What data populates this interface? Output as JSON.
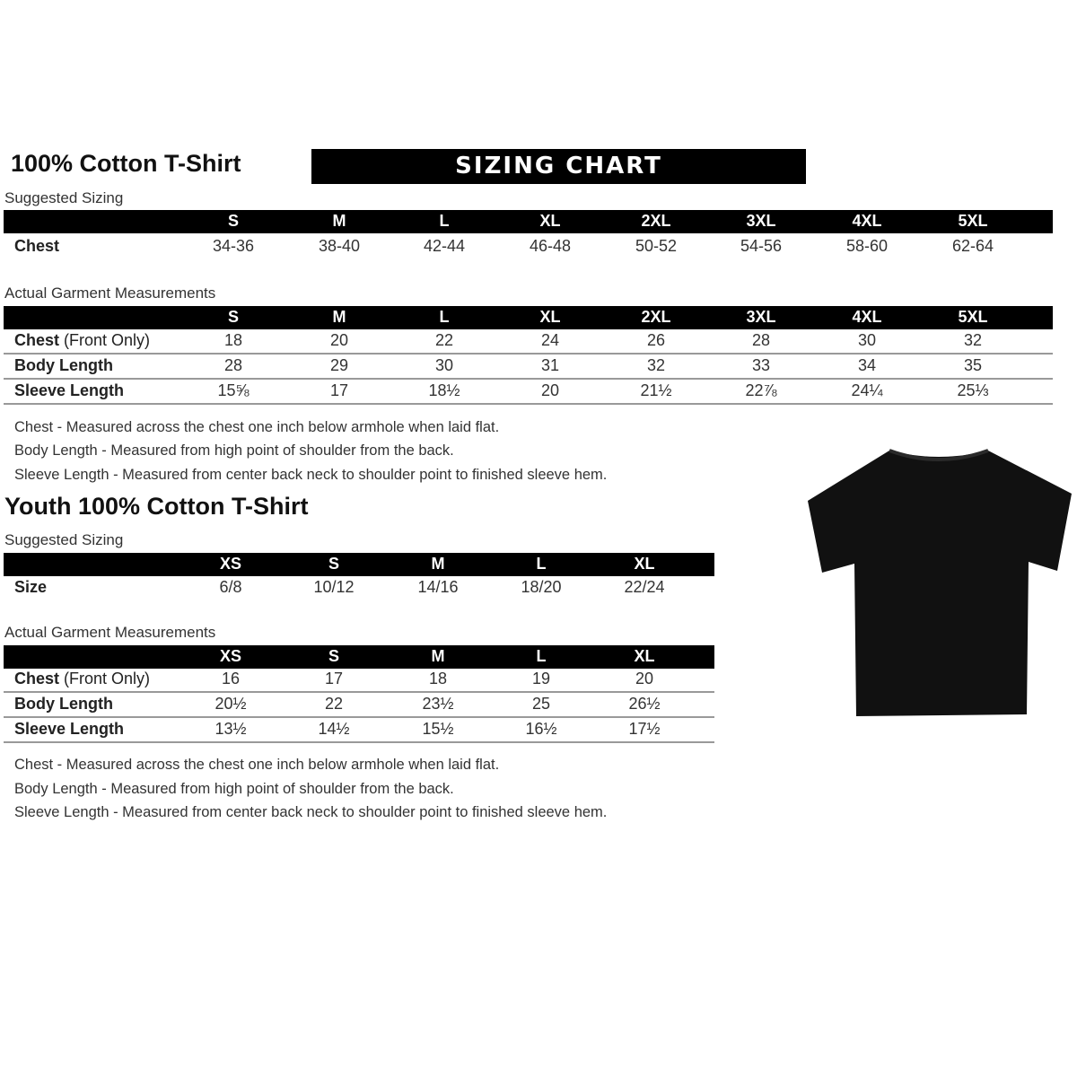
{
  "adult": {
    "title": "100% Cotton T-Shirt",
    "banner": "SIZING CHART",
    "suggested_label": "Suggested Sizing",
    "suggested": {
      "sizes": [
        "S",
        "M",
        "L",
        "XL",
        "2XL",
        "3XL",
        "4XL",
        "5XL"
      ],
      "rows": [
        {
          "label": "Chest",
          "values": [
            "34-36",
            "38-40",
            "42-44",
            "46-48",
            "50-52",
            "54-56",
            "58-60",
            "62-64"
          ]
        }
      ]
    },
    "actual_label": "Actual Garment Measurements",
    "actual": {
      "sizes": [
        "S",
        "M",
        "L",
        "XL",
        "2XL",
        "3XL",
        "4XL",
        "5XL"
      ],
      "rows": [
        {
          "label": "Chest",
          "label_suffix": " (Front Only)",
          "values": [
            "18",
            "20",
            "22",
            "24",
            "26",
            "28",
            "30",
            "32"
          ]
        },
        {
          "label": "Body Length",
          "values": [
            "28",
            "29",
            "30",
            "31",
            "32",
            "33",
            "34",
            "35"
          ]
        },
        {
          "label": "Sleeve Length",
          "values": [
            "15⅝",
            "17",
            "18½",
            "20",
            "21½",
            "22⅞",
            "24¼",
            "25⅓"
          ]
        }
      ]
    },
    "notes": [
      "Chest - Measured across the chest one inch below armhole when laid flat.",
      "Body Length - Measured from high point of shoulder from the back.",
      "Sleeve Length - Measured from center back neck to shoulder point to finished sleeve hem."
    ]
  },
  "youth": {
    "title": "Youth 100% Cotton T-Shirt",
    "suggested_label": "Suggested Sizing",
    "suggested": {
      "sizes": [
        "XS",
        "S",
        "M",
        "L",
        "XL"
      ],
      "rows": [
        {
          "label": "Size",
          "values": [
            "6/8",
            "10/12",
            "14/16",
            "18/20",
            "22/24"
          ]
        }
      ]
    },
    "actual_label": "Actual Garment Measurements",
    "actual": {
      "sizes": [
        "XS",
        "S",
        "M",
        "L",
        "XL"
      ],
      "rows": [
        {
          "label": "Chest",
          "label_suffix": " (Front Only)",
          "values": [
            "16",
            "17",
            "18",
            "19",
            "20"
          ]
        },
        {
          "label": "Body Length",
          "values": [
            "20½",
            "22",
            "23½",
            "25",
            "26½"
          ]
        },
        {
          "label": "Sleeve Length",
          "values": [
            "13½",
            "14½",
            "15½",
            "16½",
            "17½"
          ]
        }
      ]
    },
    "notes": [
      "Chest - Measured across the chest one inch below armhole when laid flat.",
      "Body Length - Measured from high point of shoulder from the back.",
      "Sleeve Length - Measured from center back neck to shoulder point to finished sleeve hem."
    ]
  },
  "colors": {
    "header_bar": "#000000",
    "tshirt": "#111111",
    "row_rule": "#999999"
  }
}
